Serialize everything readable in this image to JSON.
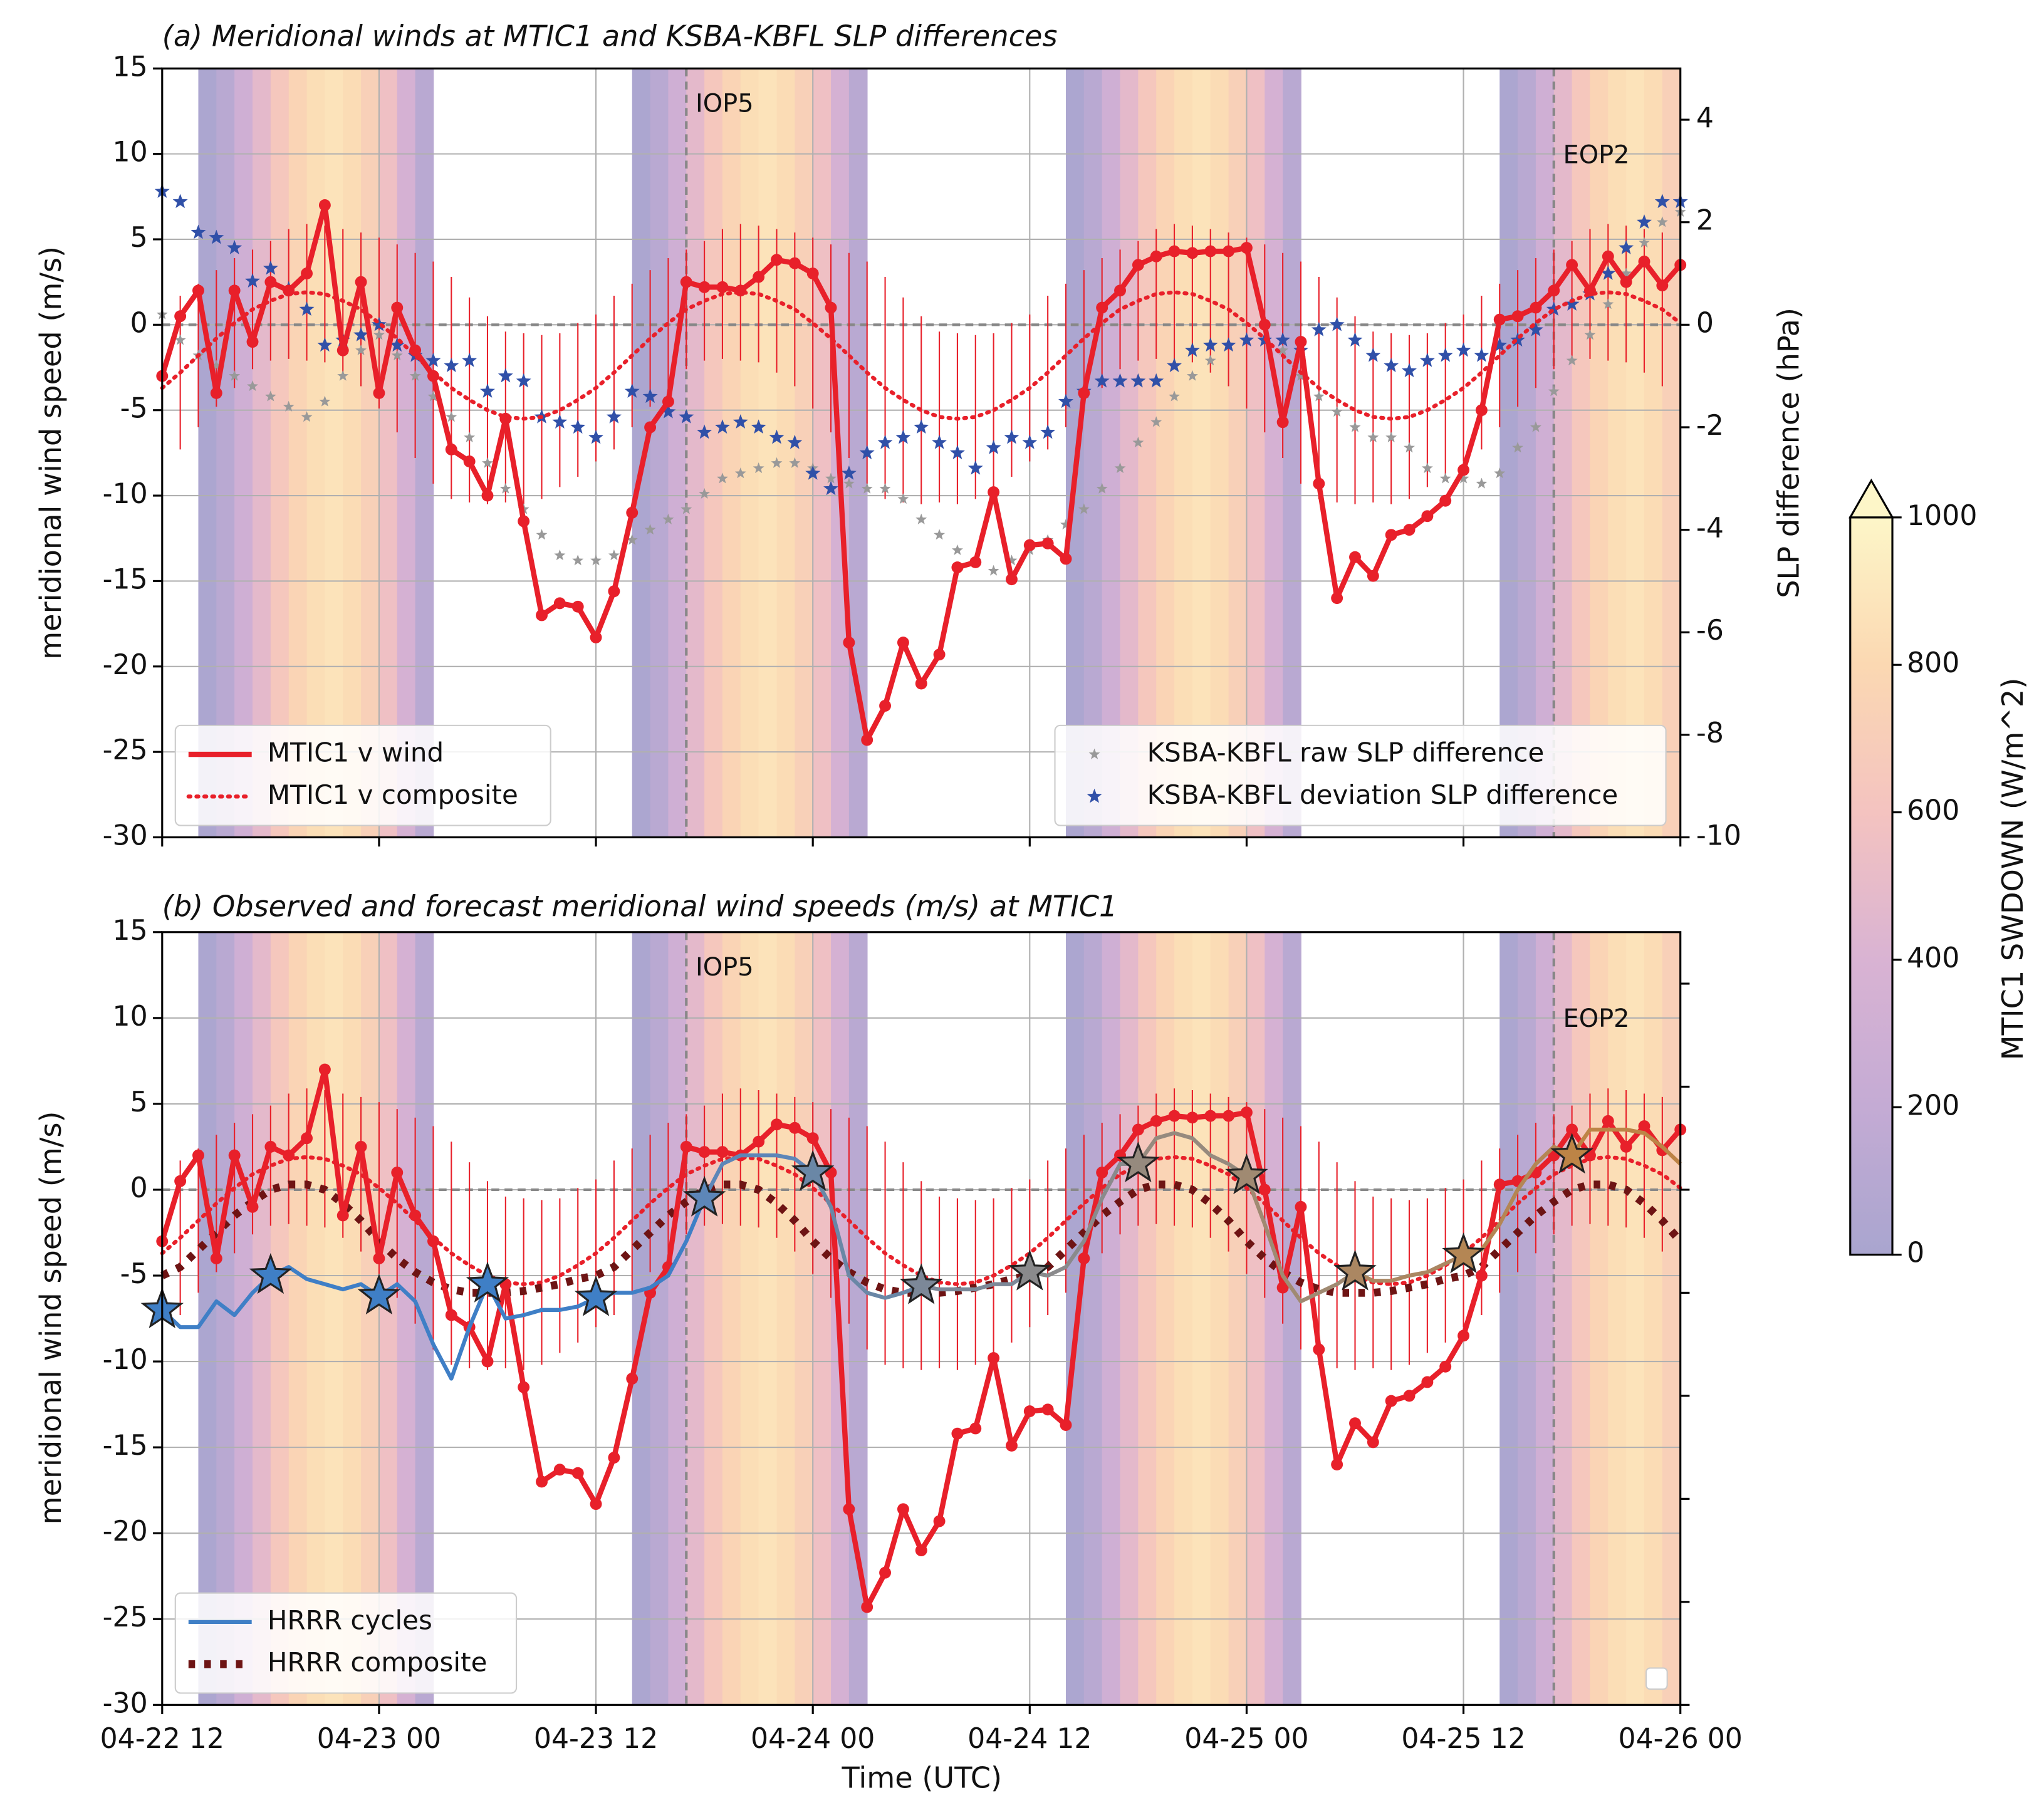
{
  "chart_data": [
    {
      "type": "line",
      "title": "(a) Meridional winds at MTIC1 and KSBA-KBFL SLP differences",
      "ylabel": "meridional wind speed (m/s)",
      "y2label": "SLP difference (hPa)",
      "x": [
        "04-22 12",
        "04-22 13",
        "04-22 14",
        "04-22 15",
        "04-22 16",
        "04-22 17",
        "04-22 18",
        "04-22 19",
        "04-22 20",
        "04-22 21",
        "04-22 22",
        "04-22 23",
        "04-23 00",
        "04-23 01",
        "04-23 02",
        "04-23 03",
        "04-23 04",
        "04-23 05",
        "04-23 06",
        "04-23 07",
        "04-23 08",
        "04-23 09",
        "04-23 10",
        "04-23 11",
        "04-23 12",
        "04-23 13",
        "04-23 14",
        "04-23 15",
        "04-23 16",
        "04-23 17",
        "04-23 18",
        "04-23 19",
        "04-23 20",
        "04-23 21",
        "04-23 22",
        "04-23 23",
        "04-24 00",
        "04-24 01",
        "04-24 02",
        "04-24 03",
        "04-24 04",
        "04-24 05",
        "04-24 06",
        "04-24 07",
        "04-24 08",
        "04-24 09",
        "04-24 10",
        "04-24 11",
        "04-24 12",
        "04-24 13",
        "04-24 14",
        "04-24 15",
        "04-24 16",
        "04-24 17",
        "04-24 18",
        "04-24 19",
        "04-24 20",
        "04-24 21",
        "04-24 22",
        "04-24 23",
        "04-25 00",
        "04-25 01",
        "04-25 02",
        "04-25 03",
        "04-25 04",
        "04-25 05",
        "04-25 06",
        "04-25 07",
        "04-25 08",
        "04-25 09",
        "04-25 10",
        "04-25 11",
        "04-25 12",
        "04-25 13",
        "04-25 14",
        "04-25 15",
        "04-25 16",
        "04-25 17",
        "04-25 18",
        "04-25 19",
        "04-25 20",
        "04-25 21",
        "04-25 22",
        "04-25 23",
        "04-26 00"
      ],
      "xlim": [
        "04-22 12",
        "04-26 00"
      ],
      "xticks": [
        "04-22 12",
        "04-23 00",
        "04-23 12",
        "04-24 00",
        "04-24 12",
        "04-25 00",
        "04-25 12",
        "04-26 00"
      ],
      "ylim": [
        -30,
        15
      ],
      "yticks": [
        -30,
        -25,
        -20,
        -15,
        -10,
        -5,
        0,
        5,
        10,
        15
      ],
      "y2lim": [
        -10,
        5
      ],
      "y2ticks": [
        -10,
        -8,
        -6,
        -4,
        -2,
        0,
        2,
        4
      ],
      "grid": true,
      "series": [
        {
          "name": "MTIC1 v wind",
          "color": "#e8202a",
          "style": "solid",
          "legend": "lower left",
          "values": [
            -3,
            0.5,
            2,
            -4,
            2,
            -1,
            2.5,
            2,
            3,
            7,
            -1.5,
            2.5,
            -4,
            1,
            -1.5,
            -3,
            -7.3,
            -8,
            -10,
            -5.5,
            -11.5,
            -17,
            -16.3,
            -16.5,
            -18.3,
            -15.6,
            -11,
            -6,
            -4.5,
            2.5,
            2.2,
            2.2,
            2,
            2.8,
            3.8,
            3.6,
            3,
            1,
            -18.6,
            -24.3,
            -22.3,
            -18.6,
            -21,
            -19.3,
            -14.2,
            -13.9,
            -9.8,
            -14.9,
            -12.9,
            -12.8,
            -13.7,
            -4,
            1,
            2,
            3.5,
            4,
            4.3,
            4.2,
            4.3,
            4.3,
            4.5,
            0,
            -5.7,
            -1,
            -9.3,
            -16,
            -13.6,
            -14.7,
            -12.3,
            -12,
            -11.2,
            -10.3,
            -8.5,
            -5,
            0.3,
            0.5,
            1,
            2,
            3.5,
            2,
            4,
            2.5,
            3.7,
            2.3,
            3.5
          ]
        },
        {
          "name": "MTIC1 v composite",
          "color": "#e8202a",
          "style": "dotted",
          "legend": "lower left",
          "values": [
            -3.7,
            -2.8,
            -1.8,
            -0.8,
            0.1,
            0.9,
            1.4,
            1.8,
            1.9,
            1.8,
            1.4,
            0.9,
            0.1,
            -0.8,
            -1.8,
            -2.8,
            -3.7,
            -4.4,
            -5.0,
            -5.4,
            -5.5,
            -5.4,
            -5.0,
            -4.4,
            -3.7,
            -2.8,
            -1.8,
            -0.8,
            0.1,
            0.9,
            1.4,
            1.8,
            1.9,
            1.8,
            1.4,
            0.9,
            0.1,
            -0.8,
            -1.8,
            -2.8,
            -3.7,
            -4.4,
            -5.0,
            -5.4,
            -5.5,
            -5.4,
            -5.0,
            -4.4,
            -3.7,
            -2.8,
            -1.8,
            -0.8,
            0.1,
            0.9,
            1.4,
            1.8,
            1.9,
            1.8,
            1.4,
            0.9,
            0.1,
            -0.8,
            -1.8,
            -2.8,
            -3.7,
            -4.4,
            -5.0,
            -5.4,
            -5.5,
            -5.4,
            -5.0,
            -4.4,
            -3.7,
            -2.8,
            -1.8,
            -0.8,
            0.1,
            0.9,
            1.4,
            1.8,
            1.9,
            1.8,
            1.4,
            0.9,
            0.1
          ],
          "errors": [
            4.3,
            4.5,
            4.2,
            4,
            3.8,
            3.5,
            3.5,
            3.8,
            4,
            4,
            4.2,
            4.5,
            5,
            5.5,
            6,
            6.5,
            6.5,
            6,
            5.5,
            5,
            5,
            4.8,
            4.5,
            4.5,
            4.3,
            4.5,
            4.2,
            4,
            3.8,
            3.5,
            3.5,
            3.8,
            4,
            4,
            4.2,
            4.5,
            5,
            5.5,
            6,
            6.5,
            6.5,
            6,
            5.5,
            5,
            5,
            4.8,
            4.5,
            4.5,
            4.3,
            4.5,
            4.2,
            4,
            3.8,
            3.5,
            3.5,
            3.8,
            4,
            4,
            4.2,
            4.5,
            5,
            5.5,
            6,
            6.5,
            6.5,
            6,
            5.5,
            5,
            5,
            4.8,
            4.5,
            4.5,
            4.3,
            4.5,
            4.2,
            4,
            3.8,
            3.5,
            3.5,
            3.8,
            4,
            4,
            4.2,
            4.5,
            5
          ]
        },
        {
          "name": "KSBA-KBFL raw SLP difference",
          "color": "#999999",
          "style": "star-small",
          "axis": "y2",
          "legend": "lower right",
          "values": [
            0.2,
            -0.3,
            -0.6,
            -0.8,
            -1.0,
            -1.2,
            -1.4,
            -1.6,
            -1.8,
            -1.5,
            -1.0,
            -0.5,
            -0.2,
            -0.6,
            -1.0,
            -1.4,
            -1.8,
            -2.2,
            -2.7,
            -3.2,
            -3.6,
            -4.1,
            -4.5,
            -4.6,
            -4.6,
            -4.5,
            -4.2,
            -4.0,
            -3.8,
            -3.6,
            -3.3,
            -3.0,
            -2.9,
            -2.8,
            -2.7,
            -2.7,
            -2.8,
            -3.0,
            -3.1,
            -3.2,
            -3.2,
            -3.4,
            -3.8,
            -4.1,
            -4.4,
            -4.6,
            -4.8,
            -4.6,
            -4.4,
            -4.2,
            -3.9,
            -3.6,
            -3.2,
            -2.8,
            -2.3,
            -1.9,
            -1.4,
            -1.0,
            -0.7,
            -0.4,
            -0.3,
            -0.3,
            -0.5,
            -1.0,
            -1.4,
            -1.7,
            -2.0,
            -2.2,
            -2.2,
            -2.4,
            -2.8,
            -3.0,
            -3.0,
            -3.1,
            -2.9,
            -2.4,
            -2.0,
            -1.3,
            -0.7,
            -0.2,
            0.4,
            1.0,
            1.6,
            2.0,
            2.2
          ]
        },
        {
          "name": "KSBA-KBFL deviation SLP difference",
          "color": "#3050a8",
          "style": "star",
          "axis": "y2",
          "legend": "lower right",
          "values": [
            2.6,
            2.4,
            1.8,
            1.7,
            1.5,
            0.85,
            1.1,
            0.7,
            0.3,
            -0.4,
            -0.3,
            -0.2,
            0,
            -0.4,
            -0.6,
            -0.7,
            -0.8,
            -0.7,
            -1.3,
            -1.0,
            -1.1,
            -1.8,
            -1.9,
            -2.0,
            -2.2,
            -1.8,
            -1.3,
            -1.4,
            -1.7,
            -1.8,
            -2.1,
            -2.0,
            -1.9,
            -2.0,
            -2.2,
            -2.3,
            -2.9,
            -3.2,
            -2.9,
            -2.5,
            -2.3,
            -2.2,
            -2.0,
            -2.3,
            -2.5,
            -2.8,
            -2.4,
            -2.2,
            -2.3,
            -2.1,
            -1.5,
            -1.3,
            -1.1,
            -1.1,
            -1.1,
            -1.1,
            -0.8,
            -0.5,
            -0.4,
            -0.4,
            -0.3,
            -0.3,
            -0.3,
            -0.5,
            -0.1,
            0,
            -0.3,
            -0.6,
            -0.8,
            -0.9,
            -0.7,
            -0.6,
            -0.5,
            -0.6,
            -0.4,
            -0.3,
            -0.1,
            0.3,
            0.4,
            0.6,
            1.0,
            1.5,
            2.0,
            2.4,
            2.4
          ]
        }
      ],
      "annotations": [
        {
          "text": "IOP5",
          "x": "04-23 17"
        },
        {
          "text": "EOP2",
          "x": "04-25 17"
        }
      ],
      "swdown": {
        "label": "MTIC1 SWDOWN (W/m^2)",
        "clim": [
          0,
          1000
        ],
        "cticks": [
          0,
          200,
          400,
          600,
          800,
          1000
        ],
        "colors": [
          "#a9a5cf",
          "#c4abd4",
          "#d9b3d3",
          "#f4c3c0",
          "#fbd8b2",
          "#fdf6c8"
        ],
        "values": [
          null,
          null,
          20,
          120,
          300,
          480,
          640,
          760,
          840,
          870,
          830,
          720,
          560,
          360,
          120,
          null,
          null,
          null,
          null,
          null,
          null,
          null,
          null,
          null,
          null,
          null,
          20,
          120,
          300,
          480,
          640,
          760,
          840,
          870,
          830,
          720,
          560,
          360,
          120,
          null,
          null,
          null,
          null,
          null,
          null,
          null,
          null,
          null,
          null,
          null,
          20,
          120,
          300,
          480,
          640,
          760,
          840,
          870,
          830,
          720,
          560,
          360,
          120,
          null,
          null,
          null,
          null,
          null,
          null,
          null,
          null,
          null,
          null,
          null,
          20,
          120,
          300,
          480,
          640,
          760,
          840,
          870,
          830,
          720,
          560
        ]
      }
    },
    {
      "type": "line",
      "title": "(b) Observed and forecast meridional wind speeds (m/s) at MTIC1",
      "xlabel": "Time (UTC)",
      "ylabel": "meridional wind speed (m/s)",
      "ylim": [
        -30,
        15
      ],
      "yticks": [
        -30,
        -25,
        -20,
        -15,
        -10,
        -5,
        0,
        5,
        10,
        15
      ],
      "series": [
        {
          "name": "HRRR cycles",
          "color": "#3f7fc6",
          "style": "solid",
          "legend": "lower left",
          "values": [
            -7,
            -8,
            -8,
            -6.5,
            -7.3,
            -6,
            -5,
            -4.5,
            -5.2,
            -5.5,
            -5.8,
            -5.5,
            -6.2,
            -5.5,
            -6.5,
            -9,
            -11,
            -8,
            -5.5,
            -7.5,
            -7.3,
            -7,
            -7,
            -6.8,
            -6.3,
            -6,
            -6,
            -5.7,
            -5,
            -3,
            -0.5,
            1.5,
            2,
            2,
            2,
            1.8,
            1,
            -1,
            -5,
            -6,
            -6.3,
            -6,
            -5.6,
            -5.8,
            -5.8,
            -5.8,
            -5.5,
            -5.5,
            -4.8,
            -5,
            -4.5,
            -3,
            -0.5,
            1.5,
            1.5,
            3,
            3.3,
            3,
            2,
            1.5,
            0.8,
            -2,
            -5,
            -6.5,
            -6,
            -5.5,
            -4.8,
            -5.3,
            -5.3,
            -5,
            -4.8,
            -4.3,
            -3.8,
            -3.5,
            -2,
            0,
            1.5,
            2.5,
            2,
            3.5,
            3.5,
            3.5,
            3.3,
            2.5,
            1.5
          ],
          "star_x": [
            "04-22 12",
            "04-22 18",
            "04-23 00",
            "04-23 06",
            "04-23 12",
            "04-23 18",
            "04-24 00",
            "04-24 06",
            "04-24 12",
            "04-24 18",
            "04-25 00",
            "04-25 06",
            "04-25 12",
            "04-25 18"
          ],
          "star_colors": [
            "#3f7fc6",
            "#3f7fc6",
            "#3f7fc6",
            "#3f7fc6",
            "#3f7fc6",
            "#5d86b8",
            "#6a87a6",
            "#7c8898",
            "#8a8a8c",
            "#968a7e",
            "#a08a72",
            "#ab8762",
            "#b48654",
            "#bd8446"
          ]
        },
        {
          "name": "HRRR composite",
          "color": "#6e1414",
          "style": "thickdot",
          "legend": "lower left",
          "values": [
            -5,
            -4.5,
            -3.5,
            -2.5,
            -1.5,
            -0.7,
            0,
            0.3,
            0.3,
            0,
            -0.8,
            -1.8,
            -3,
            -4,
            -4.8,
            -5.4,
            -5.8,
            -6,
            -6,
            -6,
            -5.9,
            -5.7,
            -5.5,
            -5.2,
            -5,
            -4.5,
            -3.5,
            -2.5,
            -1.5,
            -0.7,
            0,
            0.3,
            0.3,
            0,
            -0.8,
            -1.8,
            -3,
            -4,
            -4.8,
            -5.4,
            -5.8,
            -6,
            -6,
            -6,
            -5.9,
            -5.7,
            -5.5,
            -5.2,
            -5,
            -4.5,
            -3.5,
            -2.5,
            -1.5,
            -0.7,
            0,
            0.3,
            0.3,
            0,
            -0.8,
            -1.8,
            -3,
            -4,
            -4.8,
            -5.4,
            -5.8,
            -6,
            -6,
            -6,
            -5.9,
            -5.7,
            -5.5,
            -5.2,
            -5,
            -4.5,
            -3.5,
            -2.5,
            -1.5,
            -0.7,
            0,
            0.3,
            0.3,
            0,
            -0.8,
            -1.8,
            -3
          ]
        }
      ]
    }
  ]
}
